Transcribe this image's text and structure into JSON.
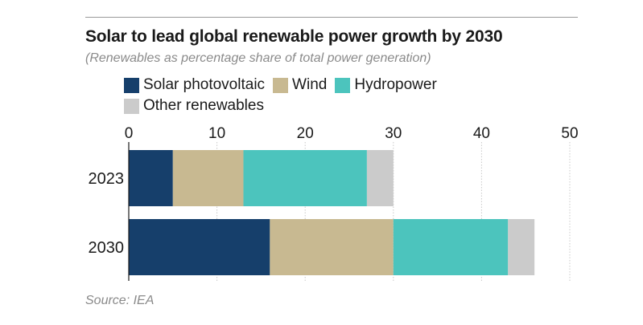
{
  "title": "Solar to lead global renewable power growth by 2030",
  "subtitle": "(Renewables as percentage share of total power generation)",
  "source": "Source: IEA",
  "colors": {
    "solar": "#163f6b",
    "wind": "#c8b991",
    "hydro": "#4cc4bd",
    "other": "#cbcbcb"
  },
  "chart_data": {
    "type": "bar",
    "orientation": "horizontal",
    "stacked": true,
    "categories": [
      "2023",
      "2030"
    ],
    "series": [
      {
        "name": "Solar photovoltaic",
        "color": "#163f6b",
        "values": [
          5,
          16
        ]
      },
      {
        "name": "Wind",
        "color": "#c8b991",
        "values": [
          8,
          14
        ]
      },
      {
        "name": "Hydropower",
        "color": "#4cc4bd",
        "values": [
          14,
          13
        ]
      },
      {
        "name": "Other renewables",
        "color": "#cbcbcb",
        "values": [
          3,
          3
        ]
      }
    ],
    "xlim": [
      0,
      50
    ],
    "xticks": [
      "0",
      "10",
      "20",
      "30",
      "40",
      "50"
    ],
    "grid": true,
    "legend_position": "top"
  }
}
